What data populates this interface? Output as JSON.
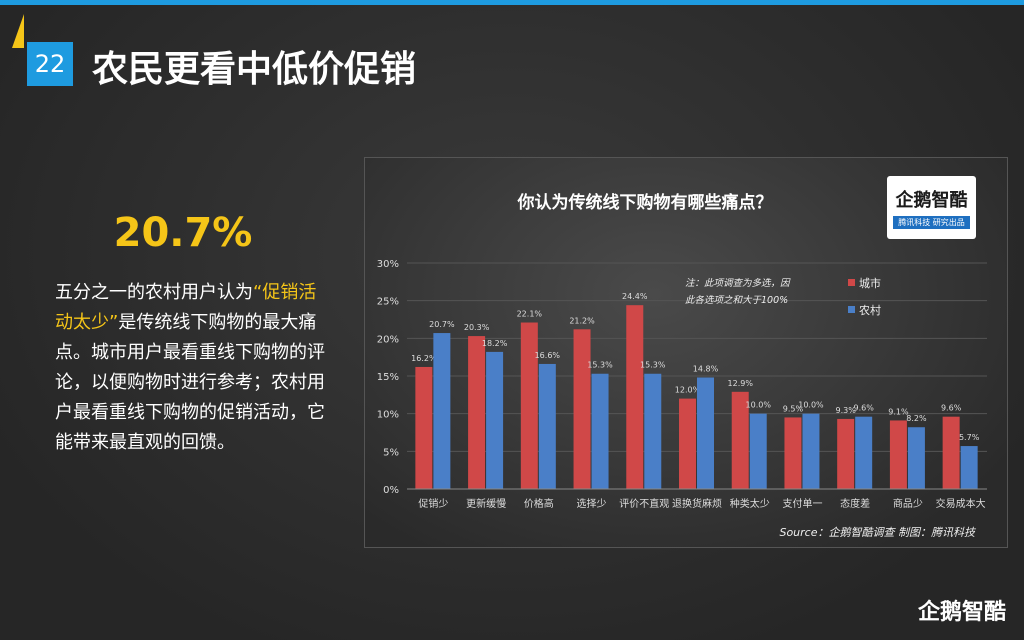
{
  "slide": {
    "number": "22",
    "title": "农民更看中低价促销",
    "highlight_stat": "20.7%",
    "paragraph": {
      "before": "五分之一的农村用户认为",
      "highlight": "“促销活动太少”",
      "after": "是传统线下购物的最大痛点。城市用户最看重线下购物的评论，以便购物时进行参考；农村用户最看重线下购物的促销活动，它能带来最直观的回馈。"
    },
    "logo": "企鹅智酷",
    "accent": "#1e9be0",
    "highlight_color": "#f5c518"
  },
  "chart_logo": {
    "name": "企鹅智酷",
    "sub": "腾讯科技 研究出品"
  },
  "chart_data": {
    "type": "bar",
    "title": "你认为传统线下购物有哪些痛点？",
    "categories": [
      "促销少",
      "更新缓慢",
      "价格高",
      "选择少",
      "评价不直观",
      "退换货麻烦",
      "种类太少",
      "支付单一",
      "态度差",
      "商品少",
      "交易成本大"
    ],
    "series": [
      {
        "name": "城市",
        "color": "#d04848",
        "values": [
          16.2,
          20.3,
          22.1,
          21.2,
          24.4,
          12.0,
          12.9,
          9.5,
          9.3,
          9.1,
          9.6
        ]
      },
      {
        "name": "农村",
        "color": "#4a7fc8",
        "values": [
          20.7,
          18.2,
          16.6,
          15.3,
          15.3,
          14.8,
          10.0,
          10.0,
          9.6,
          8.2,
          5.7
        ]
      }
    ],
    "ylim": [
      0,
      30
    ],
    "yticks": [
      "0%",
      "5%",
      "10%",
      "15%",
      "20%",
      "25%",
      "30%"
    ],
    "grid": true,
    "legend": "top-right",
    "note": [
      "注：此项调查为多选，因",
      "此各选项之和大于100%"
    ],
    "source": "Source：企鹅智酷调查  制图：腾讯科技"
  }
}
